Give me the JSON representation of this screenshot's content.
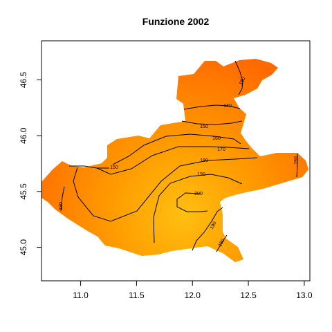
{
  "chart_data": {
    "type": "contour",
    "title": "Funzione 2002",
    "xlabel": "",
    "ylabel": "",
    "xlim": [
      10.65,
      13.05
    ],
    "ylim": [
      44.7,
      46.85
    ],
    "x_ticks": [
      "11.0",
      "11.5",
      "12.0",
      "12.5",
      "13.0"
    ],
    "y_ticks": [
      "45.0",
      "45.5",
      "46.0",
      "46.5"
    ],
    "grid": false,
    "fill_colors": {
      "low": "#ff6a00",
      "mid": "#ff9a00",
      "high": "#ffbf10"
    },
    "contour_levels": [
      {
        "label": "140"
      },
      {
        "label": "150"
      },
      {
        "label": "160"
      },
      {
        "label": "170"
      },
      {
        "label": "180"
      },
      {
        "label": "190"
      },
      {
        "label": "200"
      }
    ],
    "contour_line_labels": [
      "180",
      "140",
      "150",
      "160",
      "170",
      "150",
      "180",
      "190",
      "190",
      "200",
      "190",
      "180",
      "190"
    ]
  }
}
